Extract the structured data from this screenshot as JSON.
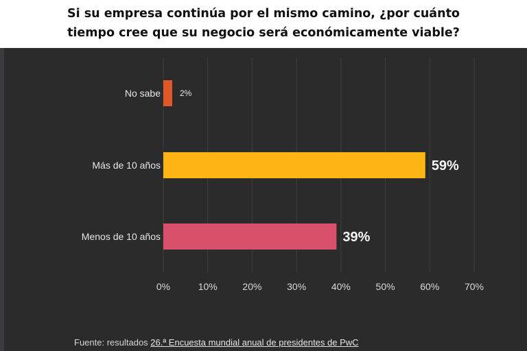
{
  "title_lines": [
    "Si su empresa continúa por el mismo camino, ¿por cuánto",
    "tiempo cree que su negocio será económicamente viable?"
  ],
  "chart_data": {
    "type": "bar",
    "orientation": "horizontal",
    "title": "Si su empresa continúa por el mismo camino, ¿por cuánto tiempo cree que su negocio será económicamente viable?",
    "categories": [
      "No sabe",
      "Más de 10 años",
      "Menos de 10 años"
    ],
    "values": [
      2,
      59,
      39
    ],
    "data_labels": [
      "2%",
      "59%",
      "39%"
    ],
    "colors": [
      "#e0582a",
      "#fdb515",
      "#d9506d"
    ],
    "xlim": [
      0,
      70
    ],
    "xticks": [
      0,
      10,
      20,
      30,
      40,
      50,
      60,
      70
    ],
    "xtick_labels": [
      "0%",
      "10%",
      "20%",
      "30%",
      "40%",
      "50%",
      "60%",
      "70%"
    ],
    "xlabel": "",
    "ylabel": "",
    "grid": true,
    "legend": "none"
  },
  "source": {
    "prefix": "Fuente: resultados ",
    "link_text": "26.ª Encuesta mundial anual de presidentes de PwC"
  },
  "colors": {
    "background": "#2b2b2b",
    "gridline": "#3f3f3f"
  }
}
